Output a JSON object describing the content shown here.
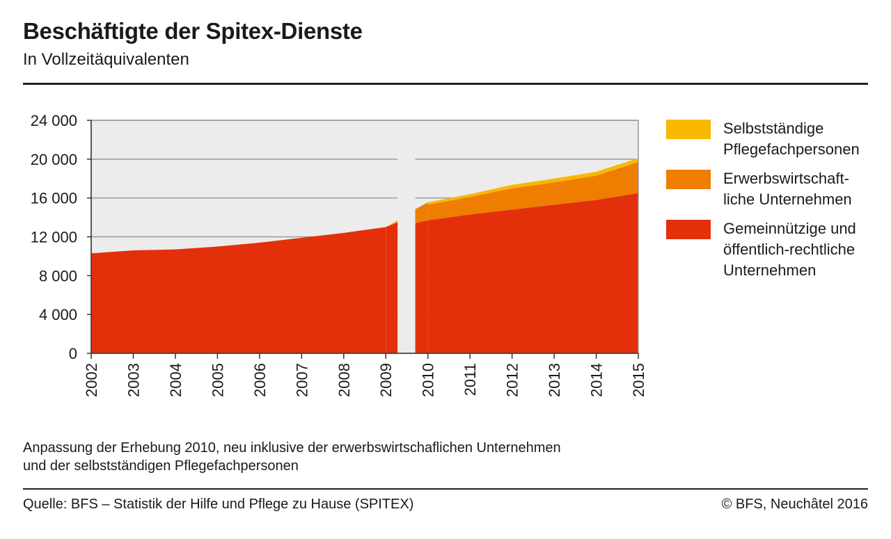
{
  "header": {
    "title": "Beschäftigte der Spitex-Dienste",
    "subtitle": "In Vollzeitäquivalenten"
  },
  "footer": {
    "note_line1": "Anpassung der Erhebung 2010, neu inklusive der erwerbswirtschaflichen Unternehmen",
    "note_line2": "und der selbstständigen Pflegefachpersonen",
    "source": "Quelle: BFS – Statistik der Hilfe und Pflege zu Hause (SPITEX)",
    "copyright": "© BFS, Neuchâtel 2016"
  },
  "legend": [
    {
      "line1": "Selbstständige",
      "line2": "Pflegefachpersonen",
      "line3": "",
      "color": "#f9b800"
    },
    {
      "line1": "Erwerbswirtschaft-",
      "line2": "liche Unternehmen",
      "line3": "",
      "color": "#ee7d00"
    },
    {
      "line1": "Gemeinnützige und",
      "line2": "öffentlich-rechtliche",
      "line3": "Unternehmen",
      "color": "#e3300b"
    }
  ],
  "chart_data": {
    "type": "area",
    "stacked": true,
    "x": [
      2002,
      2003,
      2004,
      2005,
      2006,
      2007,
      2008,
      2009,
      2010,
      2011,
      2012,
      2013,
      2014,
      2015
    ],
    "xlabels": [
      "2002",
      "2003",
      "2004",
      "2005",
      "2006",
      "2007",
      "2008",
      "2009",
      "2010",
      "2011",
      "2012",
      "2013",
      "2014",
      "2015"
    ],
    "ylim": [
      0,
      24000
    ],
    "yticks": [
      0,
      4000,
      8000,
      12000,
      16000,
      20000,
      24000
    ],
    "ytick_labels": [
      "0",
      "4 000",
      "8 000",
      "12 000",
      "16 000",
      "20 000",
      "24 000"
    ],
    "grid": true,
    "break_between": [
      2009,
      2010
    ],
    "legend_position": "right",
    "series": [
      {
        "name": "Gemeinnützige und öffentlich-rechtliche Unternehmen",
        "color": "#e3300b",
        "values": [
          10300,
          10600,
          10700,
          11000,
          11400,
          11900,
          12400,
          13000,
          13700,
          14300,
          14800,
          15300,
          15800,
          16500
        ]
      },
      {
        "name": "Erwerbswirtschaftliche Unternehmen",
        "color": "#ee7d00",
        "values": [
          null,
          null,
          null,
          null,
          null,
          null,
          null,
          null,
          1600,
          1800,
          2200,
          2300,
          2500,
          3200
        ]
      },
      {
        "name": "Selbstständige Pflegefachpersonen",
        "color": "#f9b800",
        "values": [
          null,
          null,
          null,
          null,
          null,
          null,
          null,
          null,
          250,
          300,
          350,
          400,
          400,
          400
        ]
      }
    ],
    "background_color": "#ececec",
    "grid_color": "#9a9a9a"
  }
}
